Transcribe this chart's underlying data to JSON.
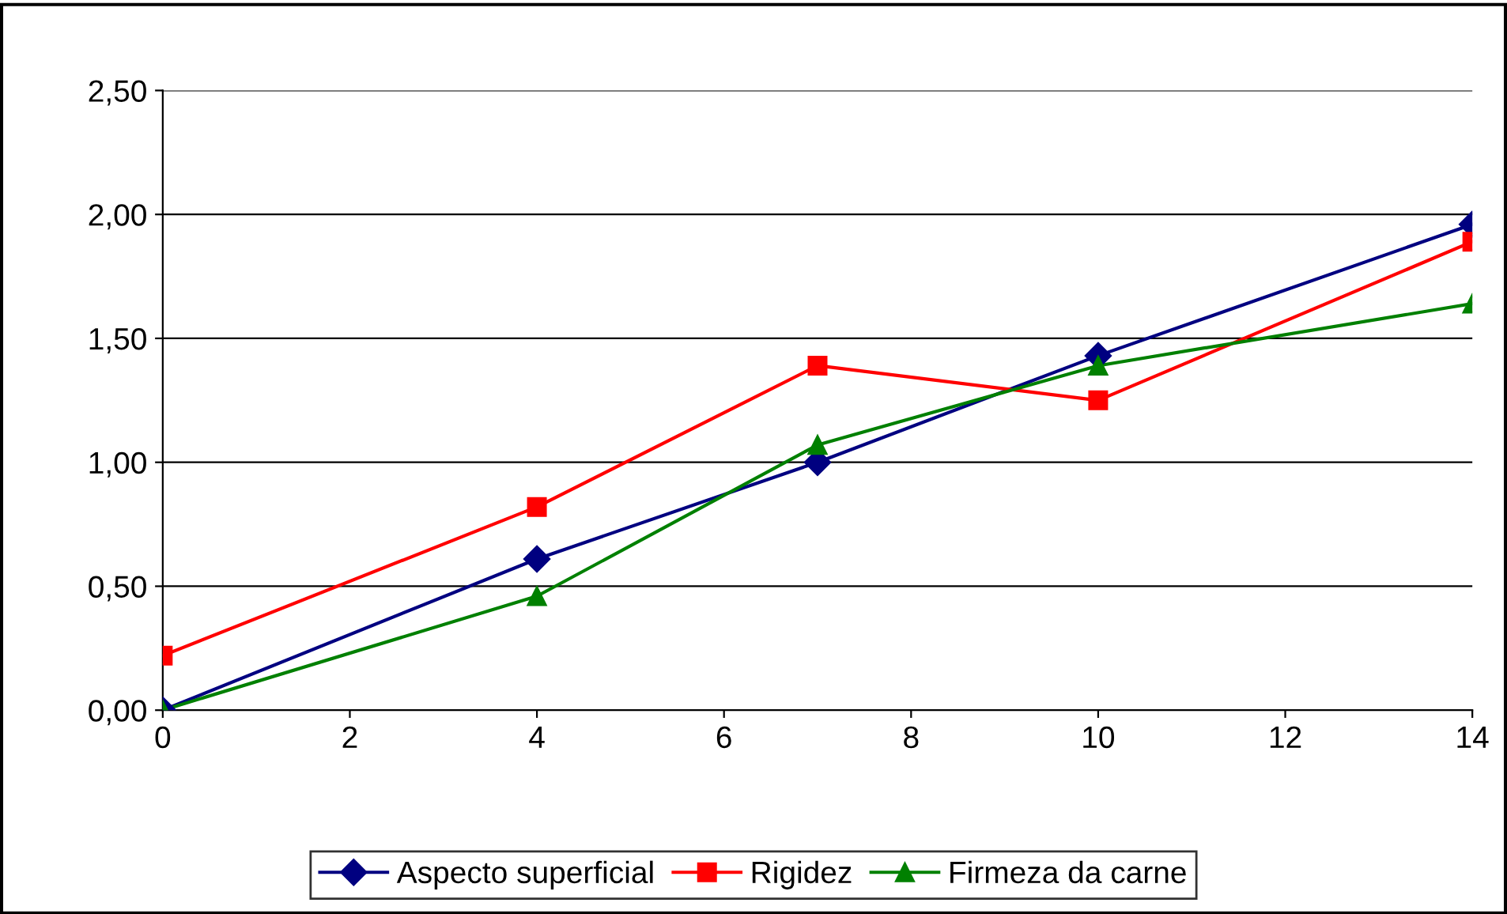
{
  "chart_data": {
    "type": "line",
    "x": [
      0,
      4,
      7,
      10,
      14
    ],
    "series": [
      {
        "name": "Aspecto superficial",
        "color": "#000080",
        "marker": "diamond",
        "values": [
          0.0,
          0.61,
          1.0,
          1.43,
          1.96
        ]
      },
      {
        "name": "Rigidez",
        "color": "#ff0000",
        "marker": "square",
        "values": [
          0.22,
          0.82,
          1.39,
          1.25,
          1.89
        ]
      },
      {
        "name": "Firmeza da carne",
        "color": "#008000",
        "marker": "triangle",
        "values": [
          0.0,
          0.46,
          1.07,
          1.39,
          1.64
        ]
      }
    ],
    "xlim": [
      0,
      14
    ],
    "xticks": [
      0,
      2,
      4,
      6,
      8,
      10,
      12,
      14
    ],
    "ylim": [
      0,
      2.5
    ],
    "yticks": [
      {
        "value": 0,
        "label": "0,00"
      },
      {
        "value": 0.5,
        "label": "0,50"
      },
      {
        "value": 1,
        "label": "1,00"
      },
      {
        "value": 1.5,
        "label": "1,50"
      },
      {
        "value": 2,
        "label": "2,00"
      },
      {
        "value": 2.5,
        "label": "2,50"
      }
    ],
    "grid": "y",
    "legend": "bottom",
    "line_style": "solid"
  }
}
